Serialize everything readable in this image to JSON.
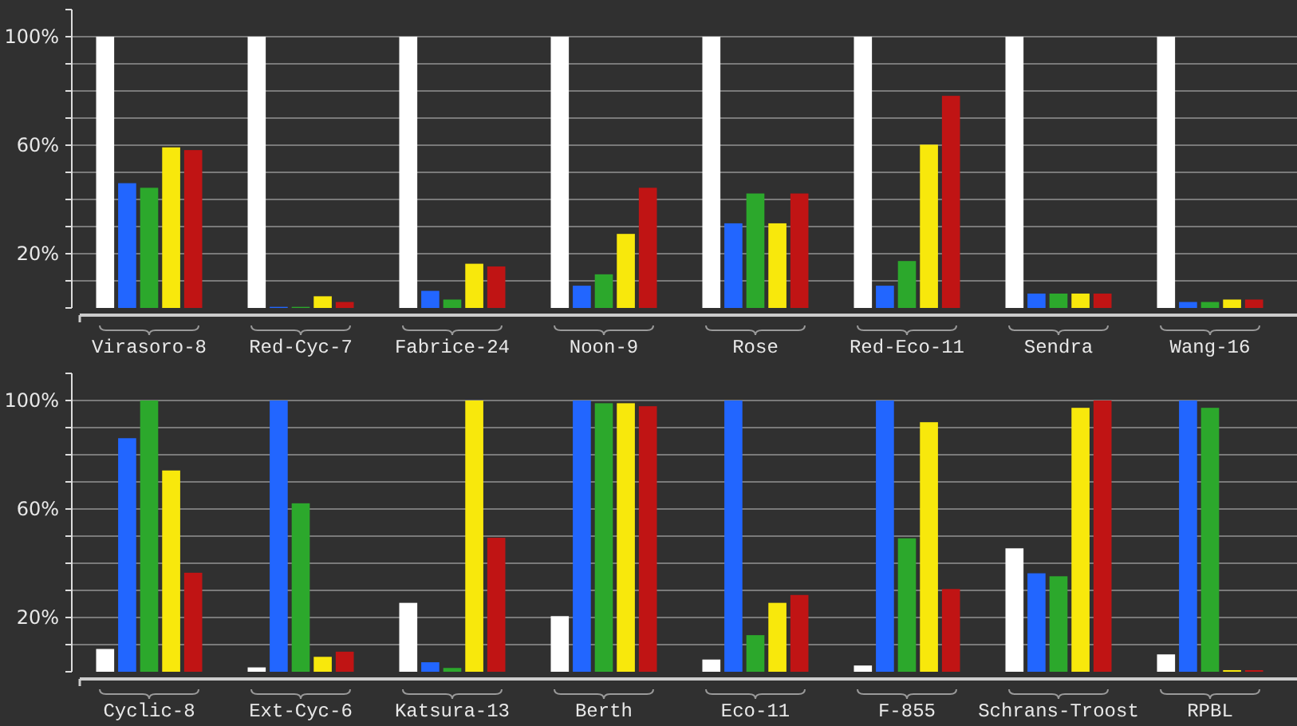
{
  "chart_data": [
    {
      "type": "bar",
      "categories": [
        "Virasoro-8",
        "Red-Cyc-7",
        "Fabrice-24",
        "Noon-9",
        "Rose",
        "Red-Eco-11",
        "Sendra",
        "Wang-16"
      ],
      "series": [
        {
          "color": "#ffffff",
          "values": [
            100,
            100,
            100,
            100,
            100,
            100,
            100,
            100
          ]
        },
        {
          "color": "#2266ff",
          "values": [
            46,
            0.4,
            6.3,
            8.2,
            31.2,
            8.2,
            5.3,
            2.2
          ]
        },
        {
          "color": "#2ca82c",
          "values": [
            44.3,
            0.4,
            3.1,
            12.4,
            42.2,
            17.3,
            5.3,
            2.2
          ]
        },
        {
          "color": "#f8e80c",
          "values": [
            59.2,
            4.3,
            16.3,
            27.3,
            31.2,
            60.2,
            5.3,
            3.1
          ]
        },
        {
          "color": "#c01414",
          "values": [
            58.2,
            2.2,
            15.3,
            44.3,
            42.2,
            78.2,
            5.3,
            3.1
          ]
        }
      ],
      "ylim": [
        0,
        110
      ],
      "yticks": [
        {
          "value": 0,
          "label": null
        },
        {
          "value": 10,
          "label": null
        },
        {
          "value": 20,
          "label": "20%"
        },
        {
          "value": 30,
          "label": null
        },
        {
          "value": 40,
          "label": null
        },
        {
          "value": 50,
          "label": null
        },
        {
          "value": 60,
          "label": "60%"
        },
        {
          "value": 70,
          "label": null
        },
        {
          "value": 80,
          "label": null
        },
        {
          "value": 90,
          "label": null
        },
        {
          "value": 100,
          "label": "100%"
        },
        {
          "value": 110,
          "label": null
        }
      ],
      "grid": "y"
    },
    {
      "type": "bar",
      "categories": [
        "Cyclic-8",
        "Ext-Cyc-6",
        "Katsura-13",
        "Berth",
        "Eco-11",
        "F-855",
        "Schrans-Troost",
        "RPBL"
      ],
      "series": [
        {
          "color": "#ffffff",
          "values": [
            8.4,
            1.6,
            25.4,
            20.5,
            4.5,
            2.3,
            45.5,
            6.4
          ]
        },
        {
          "color": "#2266ff",
          "values": [
            86.1,
            100,
            3.5,
            100,
            100,
            100,
            36.3,
            100
          ]
        },
        {
          "color": "#2ca82c",
          "values": [
            100,
            62.1,
            1.4,
            99,
            13.5,
            49.2,
            35.2,
            97.3
          ]
        },
        {
          "color": "#f8e80c",
          "values": [
            74.2,
            5.5,
            100,
            99,
            25.4,
            92,
            97.3,
            0.6
          ]
        },
        {
          "color": "#c01414",
          "values": [
            36.5,
            7.4,
            49.4,
            97.9,
            28.3,
            30.5,
            100,
            0.6
          ]
        }
      ],
      "ylim": [
        0,
        110
      ],
      "yticks": [
        {
          "value": 0,
          "label": null
        },
        {
          "value": 10,
          "label": null
        },
        {
          "value": 20,
          "label": "20%"
        },
        {
          "value": 30,
          "label": null
        },
        {
          "value": 40,
          "label": null
        },
        {
          "value": 50,
          "label": null
        },
        {
          "value": 60,
          "label": "60%"
        },
        {
          "value": 70,
          "label": null
        },
        {
          "value": 80,
          "label": null
        },
        {
          "value": 90,
          "label": null
        },
        {
          "value": 100,
          "label": "100%"
        },
        {
          "value": 110,
          "label": null
        }
      ],
      "grid": "y"
    }
  ]
}
